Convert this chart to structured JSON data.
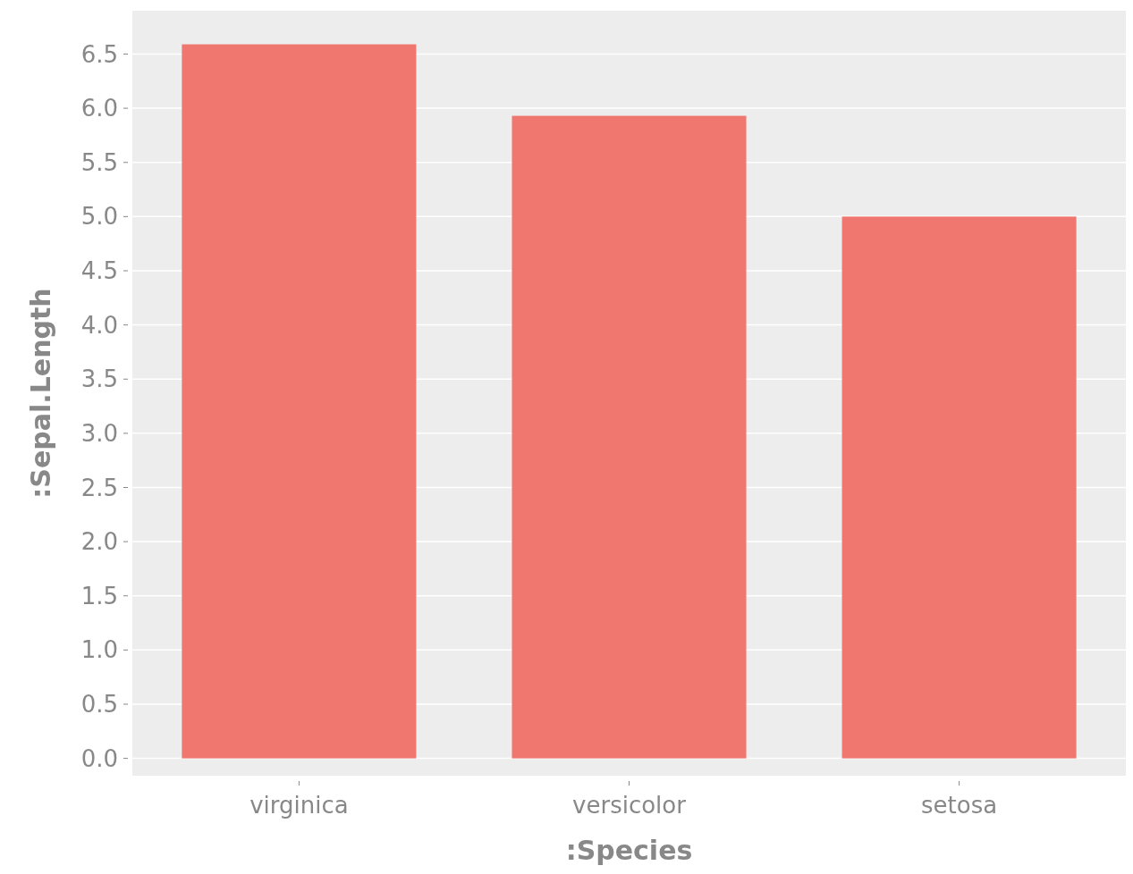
{
  "chart_data": {
    "type": "bar",
    "xlabel": ":Species",
    "ylabel": ":Sepal.Length",
    "categories": [
      "virginica",
      "versicolor",
      "setosa"
    ],
    "values": [
      6.59,
      5.93,
      5.0
    ],
    "color": "#f07670",
    "ylim": [
      -0.16,
      6.9
    ],
    "yticks": [
      {
        "value": 0,
        "label": "0.0"
      },
      {
        "value": 0.5,
        "label": "0.5"
      },
      {
        "value": 1,
        "label": "1.0"
      },
      {
        "value": 1.5,
        "label": "1.5"
      },
      {
        "value": 2,
        "label": "2.0"
      },
      {
        "value": 2.5,
        "label": "2.5"
      },
      {
        "value": 3,
        "label": "3.0"
      },
      {
        "value": 3.5,
        "label": "3.5"
      },
      {
        "value": 4,
        "label": "4.0"
      },
      {
        "value": 4.5,
        "label": "4.5"
      },
      {
        "value": 5,
        "label": "5.0"
      },
      {
        "value": 5.5,
        "label": "5.5"
      },
      {
        "value": 6,
        "label": "6.0"
      },
      {
        "value": 6.5,
        "label": "6.5"
      }
    ],
    "grid": "y"
  }
}
